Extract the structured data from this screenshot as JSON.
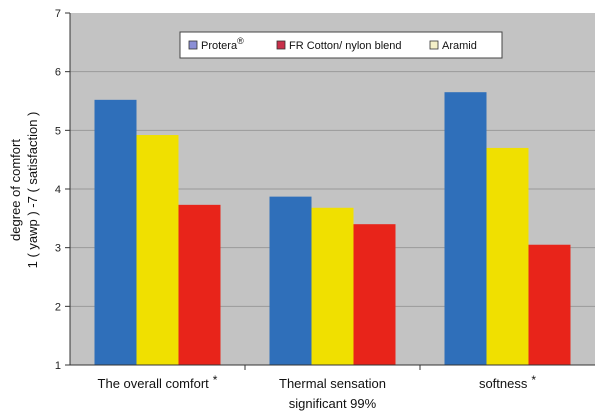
{
  "chart_data": {
    "type": "bar",
    "ylim": [
      1,
      7
    ],
    "yticks": [
      "1",
      "2",
      "3",
      "4",
      "5",
      "6",
      "7"
    ],
    "ylabel_line1": "degree of comfort",
    "ylabel_line2": "1 ( yawp ) -7 ( satisfaction )",
    "grid": true,
    "legend_position": "top-center",
    "categories": [
      {
        "line1": "The overall comfort",
        "mark": "*",
        "line2": ""
      },
      {
        "line1": "Thermal sensation",
        "mark": "",
        "line2": "significant 99%"
      },
      {
        "line1": "softness",
        "mark": "*",
        "line2": ""
      }
    ],
    "series": [
      {
        "name": "Protera",
        "sup": "®",
        "color": "#2f6fba",
        "legend_color": "#8b8fd6",
        "values": [
          5.52,
          3.87,
          5.65
        ]
      },
      {
        "name": "FR Cotton/ nylon blend",
        "sup": "",
        "color": "#f0e000",
        "legend_color": "#c8304a",
        "values": [
          4.92,
          3.68,
          4.7
        ]
      },
      {
        "name": "Aramid",
        "sup": "",
        "color": "#e8241a",
        "legend_color": "#f4f0c8",
        "values": [
          3.73,
          3.4,
          3.05
        ]
      }
    ]
  }
}
